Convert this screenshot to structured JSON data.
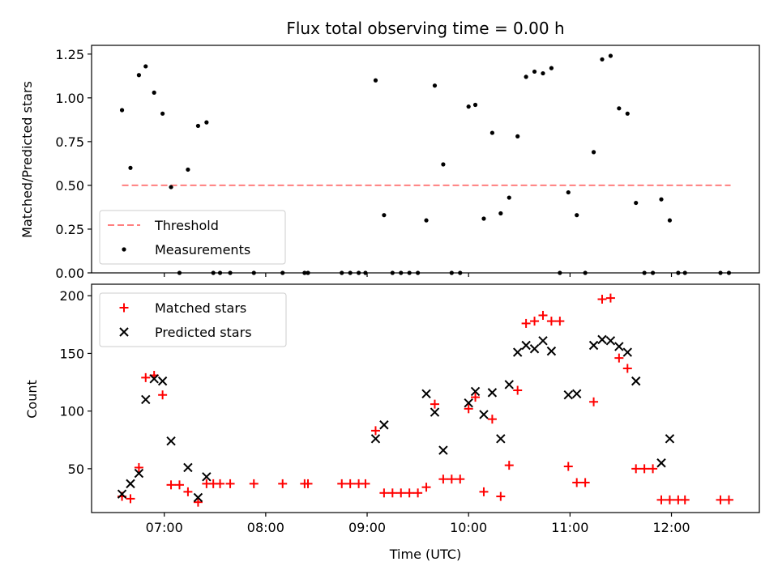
{
  "chart_data": [
    {
      "type": "scatter",
      "title": "Flux total observing time = 0.00 h",
      "xlabel": "",
      "ylabel": "Matched/Predicted stars",
      "xlim": [
        "06:17",
        "12:52"
      ],
      "ylim": [
        0,
        1.3
      ],
      "x_ticks": [
        "07:00",
        "08:00",
        "09:00",
        "10:00",
        "11:00",
        "12:00"
      ],
      "y_ticks": [
        0.0,
        0.25,
        0.5,
        0.75,
        1.0,
        1.25
      ],
      "y_tick_labels": [
        "0.00",
        "0.25",
        "0.50",
        "0.75",
        "1.00",
        "1.25"
      ],
      "legend": {
        "position": "bottom-left",
        "entries": [
          "Threshold",
          "Measurements"
        ]
      },
      "threshold": {
        "name": "Threshold",
        "value": 0.5,
        "x_start": "06:35",
        "x_end": "12:35",
        "color": "#ff7f7f",
        "style": "dashed"
      },
      "series": [
        {
          "name": "Measurements",
          "marker": "dot",
          "color": "#000000",
          "points": [
            [
              "06:35",
              0.93
            ],
            [
              "06:40",
              0.6
            ],
            [
              "06:45",
              1.13
            ],
            [
              "06:49",
              1.18
            ],
            [
              "06:54",
              1.03
            ],
            [
              "06:59",
              0.91
            ],
            [
              "07:04",
              0.49
            ],
            [
              "07:09",
              0.0
            ],
            [
              "07:14",
              0.59
            ],
            [
              "07:20",
              0.84
            ],
            [
              "07:25",
              0.86
            ],
            [
              "07:29",
              0.0
            ],
            [
              "07:33",
              0.0
            ],
            [
              "07:39",
              0.0
            ],
            [
              "07:53",
              0.0
            ],
            [
              "08:10",
              0.0
            ],
            [
              "08:23",
              0.0
            ],
            [
              "08:25",
              0.0
            ],
            [
              "08:45",
              0.0
            ],
            [
              "08:50",
              0.0
            ],
            [
              "08:55",
              0.0
            ],
            [
              "08:59",
              0.0
            ],
            [
              "09:05",
              1.1
            ],
            [
              "09:10",
              0.33
            ],
            [
              "09:15",
              0.0
            ],
            [
              "09:20",
              0.0
            ],
            [
              "09:25",
              0.0
            ],
            [
              "09:30",
              0.0
            ],
            [
              "09:35",
              0.3
            ],
            [
              "09:40",
              1.07
            ],
            [
              "09:45",
              0.62
            ],
            [
              "09:50",
              0.0
            ],
            [
              "09:55",
              0.0
            ],
            [
              "10:00",
              0.95
            ],
            [
              "10:04",
              0.96
            ],
            [
              "10:09",
              0.31
            ],
            [
              "10:14",
              0.8
            ],
            [
              "10:19",
              0.34
            ],
            [
              "10:24",
              0.43
            ],
            [
              "10:29",
              0.78
            ],
            [
              "10:34",
              1.12
            ],
            [
              "10:39",
              1.15
            ],
            [
              "10:44",
              1.14
            ],
            [
              "10:49",
              1.17
            ],
            [
              "10:54",
              0.0
            ],
            [
              "10:59",
              0.46
            ],
            [
              "11:04",
              0.33
            ],
            [
              "11:09",
              0.0
            ],
            [
              "11:14",
              0.69
            ],
            [
              "11:19",
              1.22
            ],
            [
              "11:24",
              1.24
            ],
            [
              "11:29",
              0.94
            ],
            [
              "11:34",
              0.91
            ],
            [
              "11:39",
              0.4
            ],
            [
              "11:44",
              0.0
            ],
            [
              "11:49",
              0.0
            ],
            [
              "11:54",
              0.42
            ],
            [
              "11:59",
              0.3
            ],
            [
              "12:04",
              0.0
            ],
            [
              "12:08",
              0.0
            ],
            [
              "12:29",
              0.0
            ],
            [
              "12:34",
              0.0
            ]
          ]
        }
      ]
    },
    {
      "type": "scatter",
      "title": "",
      "xlabel": "Time (UTC)",
      "ylabel": "Count",
      "xlim": [
        "06:17",
        "12:52"
      ],
      "ylim": [
        12,
        210
      ],
      "x_ticks": [
        "07:00",
        "08:00",
        "09:00",
        "10:00",
        "11:00",
        "12:00"
      ],
      "y_ticks": [
        50,
        100,
        150,
        200
      ],
      "y_tick_labels": [
        "50",
        "100",
        "150",
        "200"
      ],
      "legend": {
        "position": "top-left",
        "entries": [
          "Matched stars",
          "Predicted stars"
        ]
      },
      "series": [
        {
          "name": "Matched stars",
          "marker": "plus",
          "color": "#ff0000",
          "points": [
            [
              "06:35",
              26
            ],
            [
              "06:40",
              24
            ],
            [
              "06:45",
              51
            ],
            [
              "06:49",
              129
            ],
            [
              "06:54",
              131
            ],
            [
              "06:59",
              114
            ],
            [
              "07:04",
              36
            ],
            [
              "07:09",
              36
            ],
            [
              "07:14",
              30
            ],
            [
              "07:20",
              21
            ],
            [
              "07:25",
              37
            ],
            [
              "07:29",
              37
            ],
            [
              "07:33",
              37
            ],
            [
              "07:39",
              37
            ],
            [
              "07:53",
              37
            ],
            [
              "08:10",
              37
            ],
            [
              "08:23",
              37
            ],
            [
              "08:25",
              37
            ],
            [
              "08:45",
              37
            ],
            [
              "08:50",
              37
            ],
            [
              "08:55",
              37
            ],
            [
              "08:59",
              37
            ],
            [
              "09:05",
              83
            ],
            [
              "09:10",
              29
            ],
            [
              "09:15",
              29
            ],
            [
              "09:20",
              29
            ],
            [
              "09:25",
              29
            ],
            [
              "09:30",
              29
            ],
            [
              "09:35",
              34
            ],
            [
              "09:40",
              106
            ],
            [
              "09:45",
              41
            ],
            [
              "09:50",
              41
            ],
            [
              "09:55",
              41
            ],
            [
              "10:00",
              102
            ],
            [
              "10:04",
              112
            ],
            [
              "10:09",
              30
            ],
            [
              "10:14",
              93
            ],
            [
              "10:19",
              26
            ],
            [
              "10:24",
              53
            ],
            [
              "10:29",
              118
            ],
            [
              "10:34",
              176
            ],
            [
              "10:39",
              178
            ],
            [
              "10:44",
              183
            ],
            [
              "10:49",
              178
            ],
            [
              "10:54",
              178
            ],
            [
              "10:59",
              52
            ],
            [
              "11:04",
              38
            ],
            [
              "11:09",
              38
            ],
            [
              "11:14",
              108
            ],
            [
              "11:19",
              197
            ],
            [
              "11:24",
              198
            ],
            [
              "11:29",
              146
            ],
            [
              "11:34",
              137
            ],
            [
              "11:39",
              50
            ],
            [
              "11:44",
              50
            ],
            [
              "11:49",
              50
            ],
            [
              "11:54",
              23
            ],
            [
              "11:59",
              23
            ],
            [
              "12:04",
              23
            ],
            [
              "12:08",
              23
            ],
            [
              "12:29",
              23
            ],
            [
              "12:34",
              23
            ]
          ]
        },
        {
          "name": "Predicted stars",
          "marker": "x",
          "color": "#000000",
          "points": [
            [
              "06:35",
              28
            ],
            [
              "06:40",
              37
            ],
            [
              "06:45",
              46
            ],
            [
              "06:49",
              110
            ],
            [
              "06:54",
              128
            ],
            [
              "06:59",
              126
            ],
            [
              "07:04",
              74
            ],
            [
              "07:14",
              51
            ],
            [
              "07:20",
              25
            ],
            [
              "07:25",
              43
            ],
            [
              "09:05",
              76
            ],
            [
              "09:10",
              88
            ],
            [
              "09:35",
              115
            ],
            [
              "09:40",
              99
            ],
            [
              "09:45",
              66
            ],
            [
              "10:00",
              107
            ],
            [
              "10:04",
              117
            ],
            [
              "10:09",
              97
            ],
            [
              "10:14",
              116
            ],
            [
              "10:19",
              76
            ],
            [
              "10:24",
              123
            ],
            [
              "10:29",
              151
            ],
            [
              "10:34",
              157
            ],
            [
              "10:39",
              154
            ],
            [
              "10:44",
              161
            ],
            [
              "10:49",
              152
            ],
            [
              "10:59",
              114
            ],
            [
              "11:04",
              115
            ],
            [
              "11:14",
              157
            ],
            [
              "11:19",
              162
            ],
            [
              "11:24",
              161
            ],
            [
              "11:29",
              156
            ],
            [
              "11:34",
              151
            ],
            [
              "11:39",
              126
            ],
            [
              "11:54",
              55
            ],
            [
              "11:59",
              76
            ]
          ]
        }
      ]
    }
  ]
}
